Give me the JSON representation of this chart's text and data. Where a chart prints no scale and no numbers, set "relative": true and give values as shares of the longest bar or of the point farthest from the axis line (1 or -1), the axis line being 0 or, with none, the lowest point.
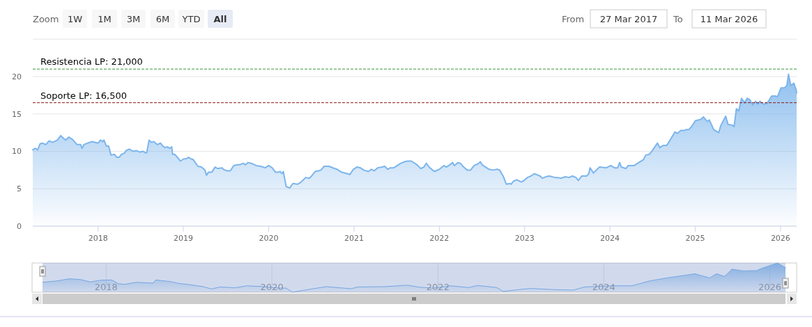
{
  "chart_data": [
    {
      "type": "area",
      "color": "#7cb5ec",
      "x": [
        "2017-03-27",
        "2017-04-07",
        "2017-04-17",
        "2017-04-27",
        "2017-05-07",
        "2017-05-22",
        "2017-06-05",
        "2017-06-20",
        "2017-07-10",
        "2017-07-25",
        "2017-08-04",
        "2017-08-14",
        "2017-08-29",
        "2017-09-13",
        "2017-10-03",
        "2017-10-18",
        "2017-10-24",
        "2017-11-01",
        "2017-11-16",
        "2017-12-06",
        "2018-01-01",
        "2018-01-11",
        "2018-01-21",
        "2018-01-26",
        "2018-02-05",
        "2018-02-15",
        "2018-02-25",
        "2018-03-12",
        "2018-03-22",
        "2018-04-01",
        "2018-04-11",
        "2018-04-25",
        "2018-04-30",
        "2018-05-15",
        "2018-05-30",
        "2018-06-14",
        "2018-06-28",
        "2018-07-13",
        "2018-07-23",
        "2018-07-28",
        "2018-08-07",
        "2018-08-17",
        "2018-08-27",
        "2018-09-11",
        "2018-09-25",
        "2018-10-05",
        "2018-10-15",
        "2018-10-25",
        "2018-11-04",
        "2018-11-12",
        "2018-11-16",
        "2018-11-24",
        "2018-12-04",
        "2018-12-19",
        "2019-01-03",
        "2019-01-13",
        "2019-01-23",
        "2019-02-02",
        "2019-02-12",
        "2019-03-04",
        "2019-03-19",
        "2019-04-03",
        "2019-04-10",
        "2019-04-18",
        "2019-05-02",
        "2019-05-17",
        "2019-05-27",
        "2019-06-16",
        "2019-06-21",
        "2019-07-06",
        "2019-07-21",
        "2019-08-05",
        "2019-08-20",
        "2019-08-30",
        "2019-09-14",
        "2019-09-24",
        "2019-10-04",
        "2019-10-19",
        "2019-11-08",
        "2019-11-28",
        "2019-12-18",
        "2020-01-01",
        "2020-01-16",
        "2020-01-31",
        "2020-02-10",
        "2020-02-20",
        "2020-02-27",
        "2020-03-04",
        "2020-03-16",
        "2020-03-31",
        "2020-04-14",
        "2020-05-04",
        "2020-05-19",
        "2020-06-08",
        "2020-06-23",
        "2020-07-03",
        "2020-07-18",
        "2020-08-02",
        "2020-08-12",
        "2020-08-26",
        "2020-09-15",
        "2020-10-10",
        "2020-10-20",
        "2020-11-09",
        "2020-11-24",
        "2020-12-14",
        "2020-12-29",
        "2021-01-13",
        "2021-01-28",
        "2021-02-11",
        "2021-03-03",
        "2021-03-16",
        "2021-03-28",
        "2021-04-12",
        "2021-05-02",
        "2021-05-12",
        "2021-05-25",
        "2021-06-05",
        "2021-06-20",
        "2021-07-05",
        "2021-07-20",
        "2021-08-04",
        "2021-08-19",
        "2021-09-03",
        "2021-09-18",
        "2021-10-01",
        "2021-10-13",
        "2021-10-27",
        "2021-11-06",
        "2021-11-21",
        "2021-12-11",
        "2022-01-01",
        "2022-01-21",
        "2022-01-31",
        "2022-02-15",
        "2022-02-27",
        "2022-03-06",
        "2022-03-22",
        "2022-04-01",
        "2022-04-15",
        "2022-04-30",
        "2022-05-15",
        "2022-05-30",
        "2022-06-14",
        "2022-06-26",
        "2022-07-03",
        "2022-07-18",
        "2022-08-02",
        "2022-08-17",
        "2022-09-06",
        "2022-09-16",
        "2022-10-01",
        "2022-10-15",
        "2022-10-30",
        "2022-11-04",
        "2022-11-14",
        "2022-11-29",
        "2022-12-04",
        "2022-12-19",
        "2022-12-29",
        "2023-01-13",
        "2023-01-28",
        "2023-02-11",
        "2023-02-21",
        "2023-03-08",
        "2023-03-18",
        "2023-04-02",
        "2023-04-17",
        "2023-05-12",
        "2023-05-22",
        "2023-06-05",
        "2023-06-25",
        "2023-07-10",
        "2023-07-25",
        "2023-08-09",
        "2023-08-19",
        "2023-09-03",
        "2023-09-23",
        "2023-10-03",
        "2023-10-08",
        "2023-10-23",
        "2023-11-17",
        "2023-12-17",
        "2024-01-05",
        "2024-01-20",
        "2024-02-04",
        "2024-02-12",
        "2024-02-19",
        "2024-03-10",
        "2024-03-20",
        "2024-04-14",
        "2024-05-04",
        "2024-05-24",
        "2024-06-03",
        "2024-06-18",
        "2024-07-03",
        "2024-07-23",
        "2024-08-02",
        "2024-08-17",
        "2024-09-01",
        "2024-09-11",
        "2024-10-06",
        "2024-10-16",
        "2024-10-31",
        "2024-11-15",
        "2024-11-22",
        "2024-12-04",
        "2024-12-16",
        "2025-01-01",
        "2025-01-16",
        "2025-01-26",
        "2025-02-05",
        "2025-02-15",
        "2025-02-25",
        "2025-03-02",
        "2025-03-21",
        "2025-04-11",
        "2025-04-21",
        "2025-05-11",
        "2025-05-21",
        "2025-06-08",
        "2025-06-16",
        "2025-06-26",
        "2025-07-06",
        "2025-07-18",
        "2025-07-30",
        "2025-08-12",
        "2025-08-22",
        "2025-09-04",
        "2025-09-16",
        "2025-09-25",
        "2025-10-05",
        "2025-10-20",
        "2025-11-04",
        "2025-11-24",
        "2025-12-09",
        "2025-12-19",
        "2026-01-03",
        "2026-01-18",
        "2026-01-28",
        "2026-02-04",
        "2026-02-14",
        "2026-02-27",
        "2026-03-08",
        "2026-03-11"
      ],
      "values": [
        10.2,
        10.4,
        10.2,
        11.0,
        11.1,
        10.9,
        11.4,
        11.2,
        11.5,
        12.1,
        11.8,
        11.5,
        11.9,
        11.6,
        10.9,
        10.9,
        10.4,
        10.9,
        11.1,
        11.3,
        11.1,
        11.5,
        11.3,
        11.5,
        10.7,
        10.7,
        9.5,
        9.6,
        9.2,
        9.2,
        9.6,
        9.8,
        10.1,
        10.3,
        10.0,
        10.1,
        9.9,
        10.0,
        9.8,
        9.8,
        11.5,
        11.2,
        11.3,
        10.9,
        11.1,
        10.7,
        10.5,
        10.6,
        10.4,
        10.6,
        9.6,
        9.6,
        9.3,
        8.7,
        9.0,
        9.0,
        9.2,
        9.0,
        8.9,
        8.0,
        7.9,
        7.5,
        6.8,
        7.2,
        7.2,
        7.9,
        7.7,
        7.8,
        7.6,
        7.4,
        7.4,
        8.1,
        8.2,
        8.2,
        8.4,
        8.2,
        8.5,
        8.4,
        8.1,
        8.0,
        7.8,
        8.1,
        7.8,
        7.2,
        7.2,
        7.3,
        7.0,
        7.3,
        5.3,
        5.1,
        5.7,
        5.6,
        5.9,
        6.5,
        6.4,
        6.7,
        7.3,
        7.4,
        7.5,
        8.0,
        8.0,
        7.7,
        7.6,
        7.2,
        7.1,
        6.9,
        7.6,
        7.9,
        7.8,
        7.5,
        7.3,
        7.6,
        7.4,
        7.8,
        7.9,
        8.0,
        7.6,
        7.8,
        7.8,
        8.1,
        8.4,
        8.6,
        8.7,
        8.7,
        8.4,
        8.1,
        7.7,
        7.9,
        8.4,
        7.8,
        7.3,
        7.6,
        8.1,
        7.9,
        8.2,
        8.5,
        8.1,
        8.5,
        8.4,
        7.9,
        7.5,
        7.5,
        8.1,
        8.3,
        8.6,
        8.2,
        7.9,
        7.6,
        7.5,
        7.6,
        7.5,
        6.7,
        5.6,
        5.7,
        5.6,
        6.0,
        6.2,
        6.1,
        5.9,
        6.1,
        6.5,
        6.7,
        7.0,
        6.9,
        6.7,
        6.4,
        6.6,
        6.7,
        6.5,
        6.5,
        6.4,
        6.6,
        6.5,
        6.7,
        6.5,
        6.1,
        6.7,
        6.7,
        7.0,
        7.8,
        7.1,
        7.9,
        7.8,
        8.1,
        7.8,
        7.8,
        8.5,
        7.9,
        7.7,
        8.1,
        8.1,
        8.5,
        8.9,
        9.5,
        9.6,
        10.2,
        11.1,
        10.5,
        10.8,
        10.8,
        11.3,
        12.6,
        12.4,
        12.8,
        12.8,
        12.9,
        12.9,
        13.3,
        14.1,
        14.2,
        14.3,
        14.6,
        14.2,
        14.0,
        14.2,
        12.9,
        12.5,
        13.5,
        14.7,
        13.6,
        13.5,
        13.3,
        15.7,
        15.4,
        17.1,
        16.5,
        17.1,
        16.9,
        16.2,
        16.7,
        16.3,
        16.7,
        16.3,
        16.4,
        17.4,
        17.4,
        17.3,
        18.5,
        18.5,
        18.8,
        20.3,
        18.8,
        19.1,
        18.3,
        17.8
      ],
      "xlim": [
        "2017-03-27",
        "2026-03-11"
      ],
      "xticks": [
        "2018",
        "2019",
        "2020",
        "2021",
        "2022",
        "2023",
        "2024",
        "2025",
        "2026"
      ],
      "ylim": [
        0,
        25
      ],
      "yticks": [
        0,
        5,
        10,
        15,
        20,
        {
          "value": 25,
          "label": null
        }
      ],
      "grid": "y",
      "ref_lines": [
        {
          "axis": "y",
          "value": 21,
          "label": "Resistencia LP: 21,000",
          "color": "#3a9a3a",
          "line_style": "dashed"
        },
        {
          "axis": "y",
          "value": 16.5,
          "label": "Soporte LP: 16,500",
          "color": "#8b1a1a",
          "line_style": "dashed"
        }
      ],
      "annotations": [
        "Zoom",
        "1W",
        "1M",
        "3M",
        "6M",
        "YTD",
        "All",
        "From",
        "27 Mar 2017",
        "To",
        "11 Mar 2026"
      ]
    },
    {
      "type": "area",
      "color": "#7cb5ec",
      "x": [
        "2017-03-27",
        "2017-05-22",
        "2017-07-25",
        "2017-09-13",
        "2017-10-24",
        "2017-12-06",
        "2018-01-26",
        "2018-02-25",
        "2018-03-22",
        "2018-05-15",
        "2018-07-28",
        "2018-08-07",
        "2018-10-15",
        "2018-11-16",
        "2019-01-03",
        "2019-03-04",
        "2019-04-10",
        "2019-05-17",
        "2019-07-21",
        "2019-09-14",
        "2019-11-28",
        "2020-01-31",
        "2020-03-04",
        "2020-03-31",
        "2020-06-08",
        "2020-08-26",
        "2020-12-14",
        "2021-01-13",
        "2021-05-12",
        "2021-08-19",
        "2021-10-13",
        "2021-12-11",
        "2022-02-27",
        "2022-05-15",
        "2022-06-26",
        "2022-09-16",
        "2022-10-15",
        "2023-02-11",
        "2023-05-22",
        "2023-08-19",
        "2023-10-08",
        "2024-02-12",
        "2024-05-04",
        "2024-07-23",
        "2024-10-06",
        "2025-02-05",
        "2025-04-11",
        "2025-05-11",
        "2025-06-16",
        "2025-07-18",
        "2025-09-04",
        "2025-11-04",
        "2025-11-24",
        "2026-02-04",
        "2026-03-11"
      ],
      "values": [
        0.34,
        0.38,
        0.46,
        0.43,
        0.35,
        0.41,
        0.42,
        0.29,
        0.27,
        0.34,
        0.31,
        0.42,
        0.36,
        0.3,
        0.26,
        0.19,
        0.11,
        0.18,
        0.15,
        0.22,
        0.19,
        0.14,
        0.14,
        0,
        0.09,
        0.19,
        0.12,
        0.18,
        0.19,
        0.24,
        0.17,
        0.14,
        0.22,
        0.16,
        0.23,
        0.16,
        0.03,
        0.13,
        0.09,
        0.07,
        0.18,
        0.22,
        0.22,
        0.39,
        0.49,
        0.63,
        0.49,
        0.63,
        0.54,
        0.79,
        0.73,
        0.74,
        0.81,
        1,
        0.84
      ],
      "relative": true,
      "xlim": [
        "2017-03-27",
        "2026-03-11"
      ],
      "xticks": [
        "2018",
        "2020",
        "2022",
        "2024",
        "2026"
      ],
      "grid": "x",
      "tick_labels": "x"
    }
  ]
}
